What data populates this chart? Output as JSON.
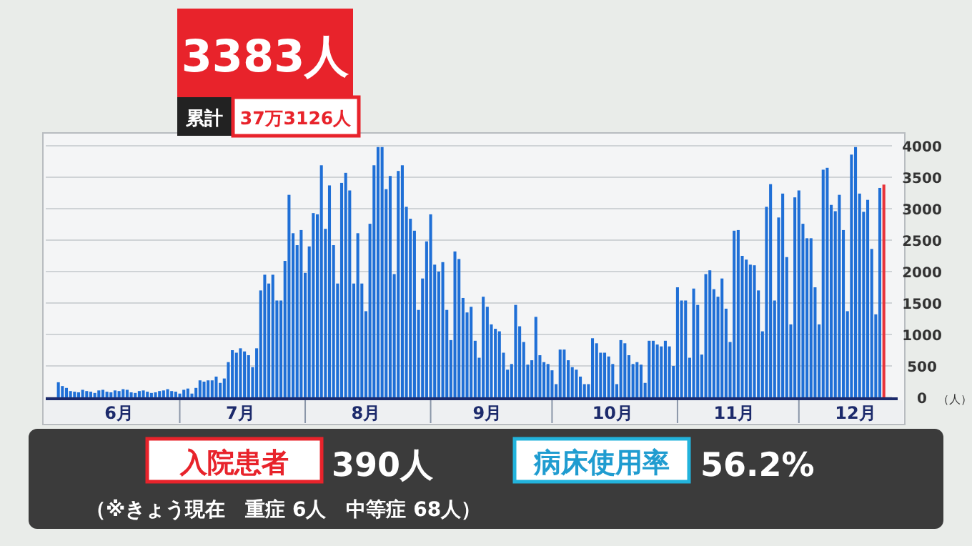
{
  "chart_data": {
    "type": "bar",
    "title": "3383人",
    "x": [
      "--06-01",
      "--06-02",
      "--06-03",
      "--06-04",
      "--06-05",
      "--06-06",
      "--06-07",
      "--06-08",
      "--06-09",
      "--06-10",
      "--06-11",
      "--06-12",
      "--06-13",
      "--06-14",
      "--06-15",
      "--06-16",
      "--06-17",
      "--06-18",
      "--06-19",
      "--06-20",
      "--06-21",
      "--06-22",
      "--06-23",
      "--06-24",
      "--06-25",
      "--06-26",
      "--06-27",
      "--06-28",
      "--06-29",
      "--06-30",
      "--07-01",
      "--07-02",
      "--07-03",
      "--07-04",
      "--07-05",
      "--07-06",
      "--07-07",
      "--07-08",
      "--07-09",
      "--07-10",
      "--07-11",
      "--07-12",
      "--07-13",
      "--07-14",
      "--07-15",
      "--07-16",
      "--07-17",
      "--07-18",
      "--07-19",
      "--07-20",
      "--07-21",
      "--07-22",
      "--07-23",
      "--07-24",
      "--07-25",
      "--07-26",
      "--07-27",
      "--07-28",
      "--07-29",
      "--07-30",
      "--07-31",
      "--08-01",
      "--08-02",
      "--08-03",
      "--08-04",
      "--08-05",
      "--08-06",
      "--08-07",
      "--08-08",
      "--08-09",
      "--08-10",
      "--08-11",
      "--08-12",
      "--08-13",
      "--08-14",
      "--08-15",
      "--08-16",
      "--08-17",
      "--08-18",
      "--08-19",
      "--08-20",
      "--08-21",
      "--08-22",
      "--08-23",
      "--08-24",
      "--08-25",
      "--08-26",
      "--08-27",
      "--08-28",
      "--08-29",
      "--08-30",
      "--08-31",
      "--09-01",
      "--09-02",
      "--09-03",
      "--09-04",
      "--09-05",
      "--09-06",
      "--09-07",
      "--09-08",
      "--09-09",
      "--09-10",
      "--09-11",
      "--09-12",
      "--09-13",
      "--09-14",
      "--09-15",
      "--09-16",
      "--09-17",
      "--09-18",
      "--09-19",
      "--09-20",
      "--09-21",
      "--09-22",
      "--09-23",
      "--09-24",
      "--09-25",
      "--09-26",
      "--09-27",
      "--09-28",
      "--09-29",
      "--09-30",
      "--10-01",
      "--10-02",
      "--10-03",
      "--10-04",
      "--10-05",
      "--10-06",
      "--10-07",
      "--10-08",
      "--10-09",
      "--10-10",
      "--10-11",
      "--10-12",
      "--10-13",
      "--10-14",
      "--10-15",
      "--10-16",
      "--10-17",
      "--10-18",
      "--10-19",
      "--10-20",
      "--10-21",
      "--10-22",
      "--10-23",
      "--10-24",
      "--10-25",
      "--10-26",
      "--10-27",
      "--10-28",
      "--10-29",
      "--10-30",
      "--10-31",
      "--11-01",
      "--11-02",
      "--11-03",
      "--11-04",
      "--11-05",
      "--11-06",
      "--11-07",
      "--11-08",
      "--11-09",
      "--11-10",
      "--11-11",
      "--11-12",
      "--11-13",
      "--11-14",
      "--11-15",
      "--11-16",
      "--11-17",
      "--11-18",
      "--11-19",
      "--11-20",
      "--11-21",
      "--11-22",
      "--11-23",
      "--11-24",
      "--11-25",
      "--11-26",
      "--11-27",
      "--11-28",
      "--11-29",
      "--11-30",
      "--12-01",
      "--12-02",
      "--12-03",
      "--12-04",
      "--12-05",
      "--12-06",
      "--12-07",
      "--12-08",
      "--12-09",
      "--12-10",
      "--12-11",
      "--12-12",
      "--12-13",
      "--12-14",
      "--12-15",
      "--12-16",
      "--12-17",
      "--12-18",
      "--12-19",
      "--12-20",
      "--12-21",
      "--12-22"
    ],
    "values": [
      240,
      180,
      150,
      100,
      90,
      80,
      120,
      100,
      90,
      70,
      110,
      120,
      90,
      80,
      110,
      100,
      130,
      120,
      80,
      70,
      100,
      110,
      90,
      70,
      80,
      100,
      110,
      130,
      100,
      90,
      60,
      120,
      140,
      60,
      150,
      270,
      250,
      270,
      270,
      330,
      230,
      300,
      560,
      750,
      710,
      780,
      730,
      670,
      480,
      780,
      1700,
      1950,
      1810,
      1950,
      1540,
      1540,
      2170,
      3220,
      2610,
      2420,
      2660,
      1980,
      2400,
      2930,
      2910,
      3690,
      2680,
      3370,
      2420,
      1810,
      3410,
      3570,
      3290,
      1810,
      2610,
      1810,
      1370,
      2760,
      3690,
      3980,
      3980,
      3310,
      3520,
      1960,
      3600,
      3690,
      3030,
      2840,
      2650,
      1390,
      1890,
      2480,
      2910,
      2110,
      2000,
      2150,
      1390,
      910,
      2320,
      2200,
      1580,
      1350,
      1440,
      900,
      630,
      1600,
      1440,
      1160,
      1090,
      1050,
      710,
      440,
      530,
      1470,
      1130,
      880,
      520,
      590,
      1280,
      670,
      560,
      530,
      430,
      210,
      760,
      760,
      590,
      480,
      440,
      330,
      210,
      210,
      940,
      860,
      710,
      710,
      650,
      530,
      210,
      910,
      860,
      670,
      530,
      560,
      520,
      230,
      900,
      900,
      840,
      810,
      900,
      810,
      500,
      1750,
      1540,
      1540,
      630,
      1730,
      1470,
      680,
      1960,
      2020,
      1720,
      1600,
      1890,
      1410,
      880,
      2650,
      2660,
      2250,
      2190,
      2110,
      2100,
      1700,
      1050,
      3030,
      3390,
      1540,
      2860,
      3240,
      2230,
      1160,
      3180,
      3290,
      2760,
      2530,
      2530,
      1750,
      1160,
      3620,
      3650,
      3060,
      2960,
      3220,
      2660,
      1370,
      3860,
      3980,
      3240,
      2950,
      3140,
      2360,
      1320,
      3330,
      3383
    ],
    "colors": [
      "#1f6fd6",
      "#1f6fd6",
      "#1f6fd6",
      "#1f6fd6",
      "#1f6fd6",
      "#1f6fd6",
      "#1f6fd6",
      "#1f6fd6",
      "#1f6fd6",
      "#1f6fd6",
      "#1f6fd6",
      "#1f6fd6",
      "#1f6fd6",
      "#1f6fd6",
      "#1f6fd6",
      "#1f6fd6",
      "#1f6fd6",
      "#1f6fd6",
      "#1f6fd6",
      "#1f6fd6",
      "#1f6fd6",
      "#1f6fd6",
      "#1f6fd6",
      "#1f6fd6",
      "#1f6fd6",
      "#1f6fd6",
      "#1f6fd6",
      "#1f6fd6",
      "#1f6fd6",
      "#1f6fd6",
      "#1f6fd6",
      "#1f6fd6",
      "#1f6fd6",
      "#1f6fd6",
      "#1f6fd6",
      "#1f6fd6",
      "#1f6fd6",
      "#1f6fd6",
      "#1f6fd6",
      "#1f6fd6",
      "#1f6fd6",
      "#1f6fd6",
      "#1f6fd6",
      "#1f6fd6",
      "#1f6fd6",
      "#1f6fd6",
      "#1f6fd6",
      "#1f6fd6",
      "#1f6fd6",
      "#1f6fd6",
      "#1f6fd6",
      "#1f6fd6",
      "#1f6fd6",
      "#1f6fd6",
      "#1f6fd6",
      "#1f6fd6",
      "#1f6fd6",
      "#1f6fd6",
      "#1f6fd6",
      "#1f6fd6",
      "#1f6fd6",
      "#1f6fd6",
      "#1f6fd6",
      "#1f6fd6",
      "#1f6fd6",
      "#1f6fd6",
      "#1f6fd6",
      "#1f6fd6",
      "#1f6fd6",
      "#1f6fd6",
      "#1f6fd6",
      "#1f6fd6",
      "#1f6fd6",
      "#1f6fd6",
      "#1f6fd6",
      "#1f6fd6",
      "#1f6fd6",
      "#1f6fd6",
      "#1f6fd6",
      "#1f6fd6",
      "#1f6fd6",
      "#1f6fd6",
      "#1f6fd6",
      "#1f6fd6",
      "#1f6fd6",
      "#1f6fd6",
      "#1f6fd6",
      "#1f6fd6",
      "#1f6fd6",
      "#1f6fd6",
      "#1f6fd6",
      "#1f6fd6",
      "#1f6fd6",
      "#1f6fd6",
      "#1f6fd6",
      "#1f6fd6",
      "#1f6fd6",
      "#1f6fd6",
      "#1f6fd6",
      "#1f6fd6",
      "#1f6fd6",
      "#1f6fd6",
      "#1f6fd6",
      "#1f6fd6",
      "#1f6fd6",
      "#1f6fd6",
      "#1f6fd6",
      "#1f6fd6",
      "#1f6fd6",
      "#1f6fd6",
      "#1f6fd6",
      "#1f6fd6",
      "#1f6fd6",
      "#1f6fd6",
      "#1f6fd6",
      "#1f6fd6",
      "#1f6fd6",
      "#1f6fd6",
      "#1f6fd6",
      "#1f6fd6",
      "#1f6fd6",
      "#1f6fd6",
      "#1f6fd6",
      "#1f6fd6",
      "#1f6fd6",
      "#1f6fd6",
      "#1f6fd6",
      "#1f6fd6",
      "#1f6fd6",
      "#1f6fd6",
      "#1f6fd6",
      "#1f6fd6",
      "#1f6fd6",
      "#1f6fd6",
      "#1f6fd6",
      "#1f6fd6",
      "#1f6fd6",
      "#1f6fd6",
      "#1f6fd6",
      "#1f6fd6",
      "#1f6fd6",
      "#1f6fd6",
      "#1f6fd6",
      "#1f6fd6",
      "#1f6fd6",
      "#1f6fd6",
      "#1f6fd6",
      "#1f6fd6",
      "#1f6fd6",
      "#1f6fd6",
      "#1f6fd6",
      "#1f6fd6",
      "#1f6fd6",
      "#1f6fd6",
      "#1f6fd6",
      "#1f6fd6",
      "#1f6fd6",
      "#1f6fd6",
      "#1f6fd6",
      "#1f6fd6",
      "#1f6fd6",
      "#1f6fd6",
      "#1f6fd6",
      "#1f6fd6",
      "#1f6fd6",
      "#1f6fd6",
      "#1f6fd6",
      "#1f6fd6",
      "#1f6fd6",
      "#1f6fd6",
      "#1f6fd6",
      "#1f6fd6",
      "#1f6fd6",
      "#1f6fd6",
      "#1f6fd6",
      "#1f6fd6",
      "#1f6fd6",
      "#1f6fd6",
      "#1f6fd6",
      "#1f6fd6",
      "#1f6fd6",
      "#1f6fd6",
      "#1f6fd6",
      "#1f6fd6",
      "#1f6fd6",
      "#1f6fd6",
      "#1f6fd6",
      "#1f6fd6",
      "#1f6fd6",
      "#1f6fd6",
      "#1f6fd6",
      "#1f6fd6",
      "#1f6fd6",
      "#1f6fd6",
      "#1f6fd6",
      "#1f6fd6",
      "#1f6fd6",
      "#1f6fd6",
      "#1f6fd6",
      "#1f6fd6",
      "#1f6fd6",
      "#1f6fd6",
      "#1f6fd6",
      "#1f6fd6",
      "#e8333a"
    ],
    "xlim": [
      "--05-31",
      "--12-24"
    ],
    "xticks": [
      {
        "value": "--06-16",
        "label": "6月"
      },
      {
        "value": "--07-01",
        "label": null
      },
      {
        "value": "--07-16",
        "label": "7月"
      },
      {
        "value": "--08-01",
        "label": null
      },
      {
        "value": "--08-16",
        "label": "8月"
      },
      {
        "value": "--09-01",
        "label": null
      },
      {
        "value": "--09-15",
        "label": "9月"
      },
      {
        "value": "--10-01",
        "label": null
      },
      {
        "value": "--10-16",
        "label": "10月"
      },
      {
        "value": "--11-01",
        "label": null
      },
      {
        "value": "--11-15",
        "label": "11月"
      },
      {
        "value": "--12-01",
        "label": null
      },
      {
        "value": "--12-15",
        "label": "12月"
      }
    ],
    "ylim": [
      0,
      4000
    ],
    "yticks": [
      0,
      500,
      1000,
      1500,
      2000,
      2500,
      3000,
      3500,
      4000
    ],
    "ylabel": "（人）",
    "grid": "y",
    "annotations": [
      "累計",
      "37万3126人",
      "入院患者",
      "390人",
      "病床使用率",
      "56.2%",
      "（※きょう現在　重症 6人　中等症 68人）"
    ]
  }
}
